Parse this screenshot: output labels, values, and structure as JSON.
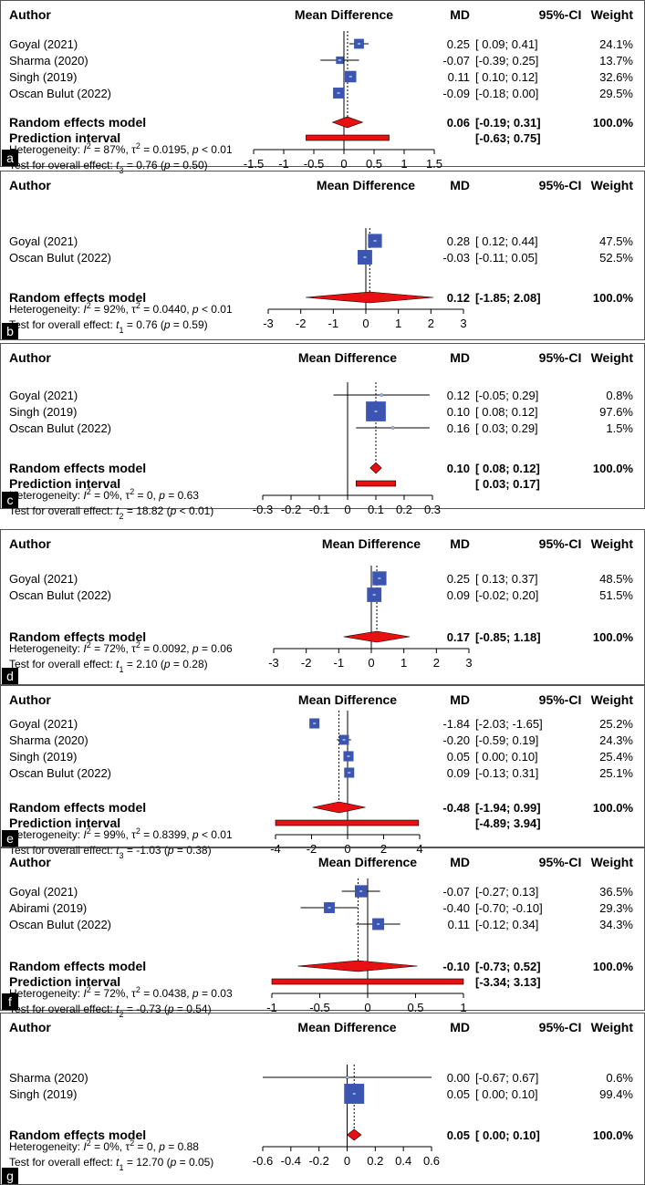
{
  "chart_data": [
    {
      "type": "forest",
      "panel": "a",
      "headers": {
        "author": "Author",
        "plot": "Mean Difference",
        "md": "MD",
        "ci": "95%-CI",
        "weight": "Weight"
      },
      "studies": [
        {
          "name": "Goyal (2021)",
          "md": 0.25,
          "lo": 0.09,
          "hi": 0.41,
          "md_text": "0.25",
          "ci_text": "[ 0.09; 0.41]",
          "weight_text": "24.1%",
          "weight": 24.1
        },
        {
          "name": "Sharma (2020)",
          "md": -0.07,
          "lo": -0.39,
          "hi": 0.25,
          "md_text": "-0.07",
          "ci_text": "[-0.39; 0.25]",
          "weight_text": "13.7%",
          "weight": 13.7
        },
        {
          "name": "Singh (2019)",
          "md": 0.11,
          "lo": 0.1,
          "hi": 0.12,
          "md_text": "0.11",
          "ci_text": "[ 0.10; 0.12]",
          "weight_text": "32.6%",
          "weight": 32.6
        },
        {
          "name": "Oscan Bulut (2022)",
          "md": -0.09,
          "lo": -0.18,
          "hi": 0.0,
          "md_text": "-0.09",
          "ci_text": "[-0.18; 0.00]",
          "weight_text": "29.5%",
          "weight": 29.5
        }
      ],
      "pooled": {
        "label": "Random effects model",
        "md": 0.06,
        "lo": -0.19,
        "hi": 0.31,
        "md_text": "0.06",
        "ci_text": "[-0.19; 0.31]",
        "weight_text": "100.0%"
      },
      "prediction": {
        "label": "Prediction interval",
        "lo": -0.63,
        "hi": 0.75,
        "ci_text": "[-0.63; 0.75]"
      },
      "heterogeneity": {
        "prefix": "Heterogeneity: ",
        "i2": "87%",
        "tau2": "0.0195",
        "p": "< 0.01"
      },
      "overall": {
        "prefix": "Test for overall effect: ",
        "df": "3",
        "t": "0.76",
        "p": "= 0.50"
      },
      "xlim": [
        -1.5,
        1.5
      ],
      "ticks": [
        -1.5,
        -1,
        -0.5,
        0,
        0.5,
        1,
        1.5
      ],
      "tick_labels": [
        "-1.5",
        "-1",
        "-0.5",
        "0",
        "0.5",
        "1",
        "1.5"
      ]
    },
    {
      "type": "forest",
      "panel": "b",
      "headers": {
        "author": "Author",
        "plot": "Mean Difference",
        "md": "MD",
        "ci": "95%-CI",
        "weight": "Weight"
      },
      "studies": [
        {
          "name": "Goyal (2021)",
          "md": 0.28,
          "lo": 0.12,
          "hi": 0.44,
          "md_text": "0.28",
          "ci_text": "[ 0.12; 0.44]",
          "weight_text": "47.5%",
          "weight": 47.5
        },
        {
          "name": "Oscan Bulut (2022)",
          "md": -0.03,
          "lo": -0.11,
          "hi": 0.05,
          "md_text": "-0.03",
          "ci_text": "[-0.11; 0.05]",
          "weight_text": "52.5%",
          "weight": 52.5
        }
      ],
      "pooled": {
        "label": "Random effects model",
        "md": 0.12,
        "lo": -1.85,
        "hi": 2.08,
        "md_text": "0.12",
        "ci_text": "[-1.85; 2.08]",
        "weight_text": "100.0%"
      },
      "heterogeneity": {
        "prefix": "Heterogeneity: ",
        "i2": "92%",
        "tau2": "0.0440",
        "p": "< 0.01"
      },
      "overall": {
        "prefix": "Test for overall effect: ",
        "df": "1",
        "t": "0.76",
        "p": "= 0.59"
      },
      "xlim": [
        -3,
        3
      ],
      "ticks": [
        -3,
        -2,
        -1,
        0,
        1,
        2,
        3
      ],
      "tick_labels": [
        "-3",
        "-2",
        "-1",
        "0",
        "1",
        "2",
        "3"
      ]
    },
    {
      "type": "forest",
      "panel": "c",
      "headers": {
        "author": "Author",
        "plot": "Mean Difference",
        "md": "MD",
        "ci": "95%-CI",
        "weight": "Weight"
      },
      "studies": [
        {
          "name": "Goyal (2021)",
          "md": 0.12,
          "lo": -0.05,
          "hi": 0.29,
          "md_text": "0.12",
          "ci_text": "[-0.05; 0.29]",
          "weight_text": "0.8%",
          "weight": 0.8
        },
        {
          "name": "Singh (2019)",
          "md": 0.1,
          "lo": 0.08,
          "hi": 0.12,
          "md_text": "0.10",
          "ci_text": "[ 0.08; 0.12]",
          "weight_text": "97.6%",
          "weight": 97.6
        },
        {
          "name": "Oscan Bulut (2022)",
          "md": 0.16,
          "lo": 0.03,
          "hi": 0.29,
          "md_text": "0.16",
          "ci_text": "[ 0.03; 0.29]",
          "weight_text": "1.5%",
          "weight": 1.5
        }
      ],
      "pooled": {
        "label": "Random effects model",
        "md": 0.1,
        "lo": 0.08,
        "hi": 0.12,
        "md_text": "0.10",
        "ci_text": "[ 0.08; 0.12]",
        "weight_text": "100.0%"
      },
      "prediction": {
        "label": "Prediction interval",
        "lo": 0.03,
        "hi": 0.17,
        "ci_text": "[ 0.03; 0.17]"
      },
      "heterogeneity": {
        "prefix": "Heterogeneity: ",
        "i2": "0%",
        "tau2": "0",
        "p": "= 0.63"
      },
      "overall": {
        "prefix": "Test for overall effect: ",
        "df": "2",
        "t": "18.82",
        "p": "< 0.01"
      },
      "xlim": [
        -0.3,
        0.3
      ],
      "ticks": [
        -0.3,
        -0.2,
        -0.1,
        0,
        0.1,
        0.2,
        0.3
      ],
      "tick_labels": [
        "-0.3",
        "-0.2",
        "-0.1",
        "0",
        "0.1",
        "0.2",
        "0.3"
      ]
    },
    {
      "type": "forest",
      "panel": "d",
      "headers": {
        "author": "Author",
        "plot": "Mean Difference",
        "md": "MD",
        "ci": "95%-CI",
        "weight": "Weight"
      },
      "studies": [
        {
          "name": "Goyal (2021)",
          "md": 0.25,
          "lo": 0.13,
          "hi": 0.37,
          "md_text": "0.25",
          "ci_text": "[ 0.13; 0.37]",
          "weight_text": "48.5%",
          "weight": 48.5
        },
        {
          "name": "Oscan Bulut (2022)",
          "md": 0.09,
          "lo": -0.02,
          "hi": 0.2,
          "md_text": "0.09",
          "ci_text": "[-0.02; 0.20]",
          "weight_text": "51.5%",
          "weight": 51.5
        }
      ],
      "pooled": {
        "label": "Random effects model",
        "md": 0.17,
        "lo": -0.85,
        "hi": 1.18,
        "md_text": "0.17",
        "ci_text": "[-0.85; 1.18]",
        "weight_text": "100.0%"
      },
      "heterogeneity": {
        "prefix": "Heterogeneity: ",
        "i2": "72%",
        "tau2": "0.0092",
        "p": "= 0.06"
      },
      "overall": {
        "prefix": "Test for overall effect: ",
        "df": "1",
        "t": "2.10",
        "p": "= 0.28"
      },
      "xlim": [
        -3,
        3
      ],
      "ticks": [
        -3,
        -2,
        -1,
        0,
        1,
        2,
        3
      ],
      "tick_labels": [
        "-3",
        "-2",
        "-1",
        "0",
        "1",
        "2",
        "3"
      ]
    },
    {
      "type": "forest",
      "panel": "e",
      "headers": {
        "author": "Author",
        "plot": "Mean Difference",
        "md": "MD",
        "ci": "95%-CI",
        "weight": "Weight"
      },
      "studies": [
        {
          "name": "Goyal (2021)",
          "md": -1.84,
          "lo": -2.03,
          "hi": -1.65,
          "md_text": "-1.84",
          "ci_text": "[-2.03; -1.65]",
          "weight_text": "25.2%",
          "weight": 25.2
        },
        {
          "name": "Sharma (2020)",
          "md": -0.2,
          "lo": -0.59,
          "hi": 0.19,
          "md_text": "-0.20",
          "ci_text": "[-0.59; 0.19]",
          "weight_text": "24.3%",
          "weight": 24.3
        },
        {
          "name": "Singh (2019)",
          "md": 0.05,
          "lo": 0.0,
          "hi": 0.1,
          "md_text": "0.05",
          "ci_text": "[ 0.00; 0.10]",
          "weight_text": "25.4%",
          "weight": 25.4
        },
        {
          "name": "Oscan Bulut (2022)",
          "md": 0.09,
          "lo": -0.13,
          "hi": 0.31,
          "md_text": "0.09",
          "ci_text": "[-0.13; 0.31]",
          "weight_text": "25.1%",
          "weight": 25.1
        }
      ],
      "pooled": {
        "label": "Random effects model",
        "md": -0.48,
        "lo": -1.94,
        "hi": 0.99,
        "md_text": "-0.48",
        "ci_text": "[-1.94; 0.99]",
        "weight_text": "100.0%"
      },
      "prediction": {
        "label": "Prediction interval",
        "lo": -4.89,
        "hi": 3.94,
        "ci_text": "[-4.89; 3.94]"
      },
      "heterogeneity": {
        "prefix": "Heterogeneity: ",
        "i2": "99%",
        "tau2": "0.8399",
        "p": "< 0.01"
      },
      "overall": {
        "prefix": "Test for overall effect: ",
        "df": "3",
        "t": "-1.03",
        "p": "= 0.38"
      },
      "xlim": [
        -4,
        4
      ],
      "ticks": [
        -4,
        -2,
        0,
        2,
        4
      ],
      "tick_labels": [
        "-4",
        "-2",
        "0",
        "2",
        "4"
      ]
    },
    {
      "type": "forest",
      "panel": "f",
      "headers": {
        "author": "Author",
        "plot": "Mean Difference",
        "md": "MD",
        "ci": "95%-CI",
        "weight": "Weight"
      },
      "studies": [
        {
          "name": "Goyal (2021)",
          "md": -0.07,
          "lo": -0.27,
          "hi": 0.13,
          "md_text": "-0.07",
          "ci_text": "[-0.27; 0.13]",
          "weight_text": "36.5%",
          "weight": 36.5
        },
        {
          "name": "Abirami (2019)",
          "md": -0.4,
          "lo": -0.7,
          "hi": -0.1,
          "md_text": "-0.40",
          "ci_text": "[-0.70; -0.10]",
          "weight_text": "29.3%",
          "weight": 29.3
        },
        {
          "name": "Oscan Bulut (2022)",
          "md": 0.11,
          "lo": -0.12,
          "hi": 0.34,
          "md_text": "0.11",
          "ci_text": "[-0.12; 0.34]",
          "weight_text": "34.3%",
          "weight": 34.3
        }
      ],
      "pooled": {
        "label": "Random effects model",
        "md": -0.1,
        "lo": -0.73,
        "hi": 0.52,
        "md_text": "-0.10",
        "ci_text": "[-0.73; 0.52]",
        "weight_text": "100.0%"
      },
      "prediction": {
        "label": "Prediction interval",
        "lo": -3.34,
        "hi": 3.13,
        "ci_text": "[-3.34; 3.13]"
      },
      "heterogeneity": {
        "prefix": "Heterogeneity: ",
        "i2": "72%",
        "tau2": "0.0438",
        "p": "= 0.03"
      },
      "overall": {
        "prefix": "Test for overall effect: ",
        "df": "2",
        "t": "-0.73",
        "p": "= 0.54"
      },
      "xlim": [
        -1,
        1
      ],
      "ticks": [
        -1,
        -0.5,
        0,
        0.5,
        1
      ],
      "tick_labels": [
        "-1",
        "-0.5",
        "0",
        "0.5",
        "1"
      ]
    },
    {
      "type": "forest",
      "panel": "g",
      "headers": {
        "author": "Author",
        "plot": "Mean Difference",
        "md": "MD",
        "ci": "95%-CI",
        "weight": "Weight"
      },
      "studies": [
        {
          "name": "Sharma (2020)",
          "md": 0.0,
          "lo": -0.67,
          "hi": 0.67,
          "md_text": "0.00",
          "ci_text": "[-0.67; 0.67]",
          "weight_text": "0.6%",
          "weight": 0.6
        },
        {
          "name": "Singh (2019)",
          "md": 0.05,
          "lo": 0.0,
          "hi": 0.1,
          "md_text": "0.05",
          "ci_text": "[ 0.00; 0.10]",
          "weight_text": "99.4%",
          "weight": 99.4
        }
      ],
      "pooled": {
        "label": "Random effects model",
        "md": 0.05,
        "lo": 0.0,
        "hi": 0.1,
        "md_text": "0.05",
        "ci_text": "[ 0.00; 0.10]",
        "weight_text": "100.0%"
      },
      "heterogeneity": {
        "prefix": "Heterogeneity: ",
        "i2": "0%",
        "tau2": "0",
        "p": "= 0.88"
      },
      "overall": {
        "prefix": "Test for overall effect: ",
        "df": "1",
        "t": "12.70",
        "p": "= 0.05"
      },
      "xlim": [
        -0.6,
        0.6
      ],
      "ticks": [
        -0.6,
        -0.4,
        -0.2,
        0,
        0.2,
        0.4,
        0.6
      ],
      "tick_labels": [
        "-0.6",
        "-0.4",
        "-0.2",
        "0",
        "0.2",
        "0.4",
        "0.6"
      ]
    }
  ],
  "colors": {
    "square": "#3b55b0",
    "diamond": "#e81010",
    "text": "#000000"
  }
}
